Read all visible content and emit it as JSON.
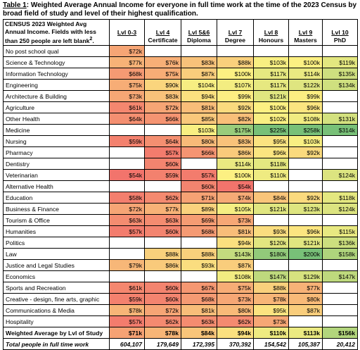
{
  "caption": {
    "label": "Table 1",
    "text": ": Weighted Average Annual Income for everyone in full time work at the time of the 2023 Census by broad field of study and level of their highest qualification."
  },
  "corner": {
    "line1": "CENSUS 2023 Weighted Avg",
    "line2": "Annual Income. Fields with less than 250 people are left blank",
    "sup": "2",
    "end": "."
  },
  "columns": [
    {
      "level": "Lvl 0-3",
      "name": ""
    },
    {
      "level": "Lvl 4",
      "name": "Certificate"
    },
    {
      "level": "Lvl 5&6",
      "name": "Diploma"
    },
    {
      "level": "Lvl 7",
      "name": "Degree"
    },
    {
      "level": "Lvl 8",
      "name": "Honours"
    },
    {
      "level": "Lvl 9",
      "name": "Masters"
    },
    {
      "level": "Lvl 10",
      "name": "PhD"
    }
  ],
  "rows": [
    {
      "field": "No post school qual",
      "values": [
        "$72k",
        "",
        "",
        "",
        "",
        "",
        ""
      ]
    },
    {
      "field": "Science & Technology",
      "values": [
        "$77k",
        "$76k",
        "$83k",
        "$88k",
        "$103k",
        "$100k",
        "$119k"
      ]
    },
    {
      "field": "Information Technology",
      "values": [
        "$68k",
        "$75k",
        "$87k",
        "$100k",
        "$117k",
        "$114k",
        "$135k"
      ]
    },
    {
      "field": "Engineering",
      "values": [
        "$75k",
        "$90k",
        "$104k",
        "$107k",
        "$117k",
        "$122k",
        "$134k"
      ]
    },
    {
      "field": "Architecture & Building",
      "values": [
        "$73k",
        "$83k",
        "$94k",
        "$99k",
        "$121k",
        "$99k",
        ""
      ]
    },
    {
      "field": "Agriculture",
      "values": [
        "$61k",
        "$72k",
        "$81k",
        "$92k",
        "$100k",
        "$96k",
        ""
      ]
    },
    {
      "field": "Other Health",
      "values": [
        "$64k",
        "$66k",
        "$85k",
        "$82k",
        "$102k",
        "$108k",
        "$131k"
      ]
    },
    {
      "field": "Medicine",
      "values": [
        "",
        "",
        "$103k",
        "$175k",
        "$225k",
        "$258k",
        "$314k"
      ]
    },
    {
      "field": "Nursing",
      "values": [
        "$59k",
        "$64k",
        "$80k",
        "$83k",
        "$95k",
        "$103k",
        ""
      ]
    },
    {
      "field": "Pharmacy",
      "values": [
        "",
        "$57k",
        "$66k",
        "$86k",
        "$96k",
        "$92k",
        ""
      ]
    },
    {
      "field": "Dentistry",
      "values": [
        "",
        "$60k",
        "",
        "$114k",
        "$118k",
        "",
        ""
      ]
    },
    {
      "field": "Veterinarian",
      "values": [
        "$54k",
        "$59k",
        "$57k",
        "$100k",
        "$110k",
        "",
        "$124k"
      ]
    },
    {
      "field": "Alternative Health",
      "values": [
        "",
        "",
        "$60k",
        "$54k",
        "",
        "",
        ""
      ]
    },
    {
      "field": "Education",
      "values": [
        "$58k",
        "$62k",
        "$71k",
        "$74k",
        "$84k",
        "$92k",
        "$118k"
      ]
    },
    {
      "field": "Business & Finance",
      "values": [
        "$72k",
        "$77k",
        "$89k",
        "$105k",
        "$121k",
        "$123k",
        "$124k"
      ]
    },
    {
      "field": "Tourism & Office",
      "values": [
        "$63k",
        "$63k",
        "$69k",
        "$73k",
        "",
        "",
        ""
      ]
    },
    {
      "field": "Humanities",
      "values": [
        "$57k",
        "$60k",
        "$68k",
        "$81k",
        "$93k",
        "$96k",
        "$115k"
      ]
    },
    {
      "field": "Politics",
      "values": [
        "",
        "",
        "",
        "$94k",
        "$120k",
        "$121k",
        "$136k"
      ]
    },
    {
      "field": "Law",
      "values": [
        "",
        "$88k",
        "$88k",
        "$143k",
        "$180k",
        "$200k",
        "$158k"
      ]
    },
    {
      "field": "Justice and Legal Studies",
      "values": [
        "$79k",
        "$86k",
        "$93k",
        "$87k",
        "",
        "",
        ""
      ]
    },
    {
      "field": "Economics",
      "values": [
        "",
        "",
        "",
        "$108k",
        "$147k",
        "$129k",
        "$147k"
      ]
    },
    {
      "field": "Sports and Recreation",
      "values": [
        "$61k",
        "$60k",
        "$67k",
        "$75k",
        "$88k",
        "$77k",
        ""
      ]
    },
    {
      "field": "Creative - design, fine arts, graphic",
      "values": [
        "$59k",
        "$60k",
        "$68k",
        "$73k",
        "$78k",
        "$80k",
        ""
      ]
    },
    {
      "field": "Communications & Media",
      "values": [
        "$78k",
        "$72k",
        "$81k",
        "$80k",
        "$95k",
        "$87k",
        ""
      ]
    },
    {
      "field": "Hospitality",
      "values": [
        "$57k",
        "$62k",
        "$63k",
        "$62k",
        "$73k",
        "",
        ""
      ]
    }
  ],
  "average": {
    "field": "Weighted Average by Lvl of Study",
    "values": [
      "$71k",
      "$78k",
      "$84k",
      "$94k",
      "$110k",
      "$113k",
      "$156k"
    ]
  },
  "total": {
    "field": "Total people in full time work",
    "values": [
      "604,107",
      "179,649",
      "172,395",
      "370,392",
      "154,542",
      "105,387",
      "20,412"
    ]
  }
}
